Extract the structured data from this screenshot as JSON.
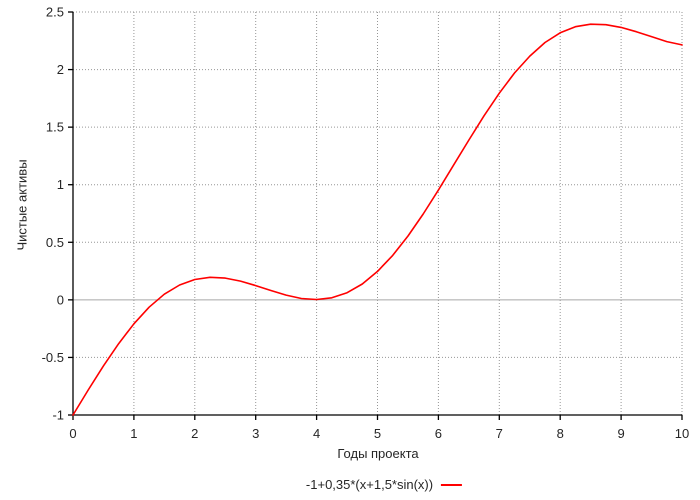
{
  "chart_data": {
    "type": "line",
    "title": "",
    "xlabel": "Годы проекта",
    "ylabel": "Чистые активы",
    "xlim": [
      0,
      10
    ],
    "ylim": [
      -1,
      2.5
    ],
    "x_ticks": [
      0,
      1,
      2,
      3,
      4,
      5,
      6,
      7,
      8,
      9,
      10
    ],
    "y_ticks": [
      -1,
      -0.5,
      0,
      0.5,
      1,
      1.5,
      2,
      2.5
    ],
    "grid": true,
    "grid_style": "dotted",
    "zero_line": true,
    "legend_position": "bottom-center",
    "series": [
      {
        "name": "-1+0,35*(x+1,5*sin(x))",
        "color": "#ff0000",
        "x": [
          0,
          0.25,
          0.5,
          0.75,
          1,
          1.25,
          1.5,
          1.75,
          2,
          2.25,
          2.5,
          2.75,
          3,
          3.25,
          3.5,
          3.75,
          4,
          4.25,
          4.5,
          4.75,
          5,
          5.25,
          5.5,
          5.75,
          6,
          6.25,
          6.5,
          6.75,
          7,
          7.25,
          7.5,
          7.75,
          8,
          8.25,
          8.5,
          8.75,
          9,
          9.25,
          9.5,
          9.75,
          10
        ],
        "y": [
          -1,
          -0.783,
          -0.573,
          -0.38,
          -0.208,
          -0.064,
          0.049,
          0.129,
          0.177,
          0.196,
          0.189,
          0.163,
          0.124,
          0.081,
          0.041,
          0.012,
          0.003,
          0.018,
          0.062,
          0.138,
          0.247,
          0.386,
          0.555,
          0.746,
          0.953,
          1.17,
          1.388,
          1.599,
          1.795,
          1.97,
          2.117,
          2.235,
          2.319,
          2.372,
          2.394,
          2.39,
          2.366,
          2.329,
          2.286,
          2.243,
          2.214
        ]
      }
    ]
  },
  "colors": {
    "background": "#ffffff",
    "axis": "#000000",
    "grid": "#969696",
    "zero_line": "#a6a6a6",
    "text": "#262626",
    "series": "#ff0000"
  }
}
